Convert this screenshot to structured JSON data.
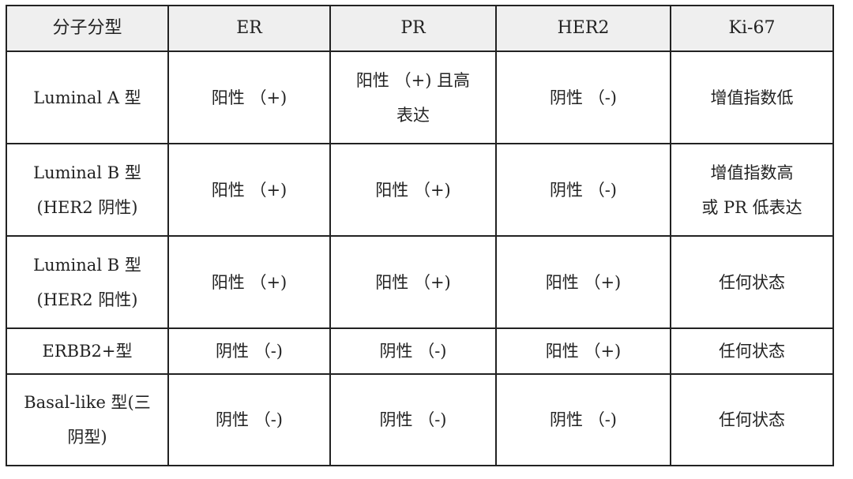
{
  "table": {
    "headers": [
      "分子分型",
      "ER",
      "PR",
      "HER2",
      "Ki-67"
    ],
    "rows": [
      [
        [
          "Luminal A 型"
        ],
        [
          "阳性 （+)"
        ],
        [
          "阳性 （+) 且高",
          "表达"
        ],
        [
          "阴性 （-)"
        ],
        [
          "增值指数低"
        ]
      ],
      [
        [
          "Luminal B 型",
          "(HER2 阴性)"
        ],
        [
          "阳性 （+)"
        ],
        [
          "阳性 （+)"
        ],
        [
          "阴性 （-)"
        ],
        [
          "增值指数高",
          "或 PR 低表达"
        ]
      ],
      [
        [
          "Luminal B 型",
          "(HER2 阳性)"
        ],
        [
          "阳性 （+)"
        ],
        [
          "阳性 （+)"
        ],
        [
          "阳性 （+)"
        ],
        [
          "任何状态"
        ]
      ],
      [
        [
          "ERBB2+型"
        ],
        [
          "阴性 （-)"
        ],
        [
          "阴性 （-)"
        ],
        [
          "阳性 （+)"
        ],
        [
          "任何状态"
        ]
      ],
      [
        [
          "Basal-like 型(三",
          "阴型)"
        ],
        [
          "阴性 （-)"
        ],
        [
          "阴性 （-)"
        ],
        [
          "阴性 （-)"
        ],
        [
          "任何状态"
        ]
      ]
    ]
  },
  "colors": {
    "header_bg": "#efefef",
    "border": "#222222"
  }
}
